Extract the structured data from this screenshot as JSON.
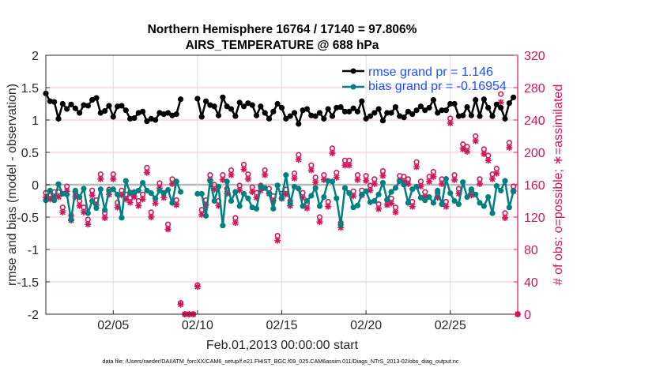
{
  "chart_data": {
    "type": "line",
    "title": "Northern Hemisphere 16764 / 17140 = 97.806%",
    "subtitle": "AIRS_TEMPERATURE @ 688 hPa",
    "xlabel": "Feb.01,2013 00:00:00 start",
    "ylabel": "rmse and bias (model - observation)",
    "ylabel_right": "# of obs: o=possible; ∗=assimilated",
    "footer": "data file: /Users/raeder/DAI/ATM_forcXX/CAM6_setup/f.e21.FHIST_BGC.f09_025.CAM6assim.011/Diags_NTrS_2013-02/obs_diag_output.nc",
    "x_start": "2013-02-01 00:00",
    "x_step_days": 0.25,
    "xlim_days": [
      0,
      28
    ],
    "x_ticks": [
      {
        "day": 4,
        "label": "02/05"
      },
      {
        "day": 9,
        "label": "02/10"
      },
      {
        "day": 14,
        "label": "02/15"
      },
      {
        "day": 19,
        "label": "02/20"
      },
      {
        "day": 24,
        "label": "02/25"
      }
    ],
    "ylim": [
      -2,
      2
    ],
    "y_ticks": [
      "2",
      "1.5",
      "1",
      "0.5",
      "0",
      "-0.5",
      "-1",
      "-1.5",
      "-2"
    ],
    "ylim_right": [
      0,
      320
    ],
    "y_ticks_right": [
      "320",
      "280",
      "240",
      "200",
      "160",
      "120",
      "80",
      "40",
      "0"
    ],
    "grid": true,
    "legend_position": "top-right",
    "legend": [
      "rmse grand pr = 1.146",
      "bias grand pr = -0.16954"
    ],
    "colors": {
      "rmse": "#000000",
      "bias": "#008080",
      "obs": "#d4145a",
      "legend_text": "#1f4fff"
    },
    "series": [
      {
        "name": "rmse",
        "values": [
          1.41,
          1.29,
          1.28,
          1.02,
          1.25,
          1.17,
          1.24,
          1.18,
          1.11,
          1.23,
          1.22,
          1.31,
          1.34,
          1.11,
          1.14,
          1.22,
          1.05,
          1.21,
          1.22,
          1.15,
          1.02,
          1.03,
          1.11,
          1.13,
          0.98,
          1.02,
          1.0,
          1.11,
          1.09,
          1.11,
          1.07,
          1.09,
          1.32,
          null,
          null,
          null,
          1.33,
          1.05,
          1.29,
          1.23,
          1.21,
          1.07,
          1.35,
          1.21,
          1.17,
          1.06,
          1.27,
          1.21,
          1.26,
          1.23,
          1.07,
          1.21,
          1.11,
          1.02,
          1.13,
          1.25,
          1.19,
          1.02,
          1.06,
          1.11,
          0.94,
          1.15,
          1.17,
          1.07,
          1.06,
          1.11,
          1.02,
          1.17,
          1.06,
          1.19,
          1.2,
          1.13,
          1.13,
          1.18,
          1.13,
          1.29,
          1.02,
          1.06,
          1.11,
          1.17,
          0.99,
          1.11,
          1.11,
          1.2,
          1.06,
          1.04,
          1.13,
          1.09,
          1.15,
          1.21,
          1.15,
          1.19,
          1.31,
          1.11,
          1.15,
          1.15,
          1.25,
          1.25,
          1.06,
          1.07,
          1.2,
          1.07,
          1.31,
          1.06,
          1.32,
          1.19,
          1.06,
          1.24,
          1.19,
          1.02,
          1.26,
          1.35,
          null
        ]
      },
      {
        "name": "bias",
        "values": [
          -0.24,
          -0.09,
          -0.24,
          0.01,
          -0.14,
          -0.15,
          -0.54,
          -0.09,
          -0.19,
          -0.06,
          -0.44,
          -0.25,
          -0.36,
          -0.07,
          -0.39,
          -0.1,
          -0.07,
          -0.15,
          -0.51,
          0.06,
          -0.12,
          -0.12,
          -0.09,
          0.03,
          -0.09,
          -0.13,
          -0.21,
          -0.09,
          -0.13,
          -0.08,
          -0.28,
          0.05,
          -0.11,
          null,
          null,
          null,
          -0.14,
          -0.14,
          -0.48,
          0.06,
          -0.25,
          -0.03,
          -0.63,
          0.05,
          -0.25,
          -0.11,
          -0.33,
          -0.14,
          -0.21,
          -0.35,
          -0.37,
          -0.03,
          -0.05,
          -0.13,
          -0.37,
          -0.01,
          -0.21,
          0.15,
          -0.29,
          -0.03,
          -0.06,
          -0.33,
          -0.25,
          -0.17,
          -0.05,
          -0.33,
          -0.19,
          0.06,
          0.05,
          -0.21,
          -0.62,
          -0.05,
          -0.13,
          -0.35,
          -0.32,
          -0.15,
          -0.1,
          -0.27,
          -0.25,
          -0.15,
          0.03,
          -0.23,
          -0.11,
          -0.05,
          0.06,
          0.0,
          -0.28,
          -0.07,
          -0.03,
          -0.2,
          -0.24,
          -0.19,
          -0.28,
          -0.09,
          -0.3,
          0.09,
          -0.13,
          -0.25,
          -0.3,
          0.04,
          -0.19,
          -0.07,
          -0.15,
          -0.28,
          -0.33,
          -0.19,
          -0.44,
          -0.02,
          -0.09,
          0.06,
          -0.35,
          -0.1,
          null
        ]
      },
      {
        "name": "obs possible",
        "axis": "right",
        "values": [
          150,
          148,
          151,
          151,
          132,
          158,
          122,
          151,
          140,
          132,
          117,
          153,
          141,
          173,
          125,
          154,
          173,
          138,
          153,
          148,
          144,
          151,
          140,
          148,
          181,
          126,
          143,
          162,
          150,
          111,
          167,
          141,
          14,
          0,
          0,
          0,
          36,
          129,
          141,
          172,
          160,
          140,
          172,
          155,
          178,
          119,
          159,
          185,
          173,
          157,
          150,
          159,
          178,
          155,
          146,
          97,
          149,
          154,
          140,
          174,
          197,
          150,
          137,
          184,
          169,
          120,
          172,
          139,
          205,
          175,
          113,
          190,
          190,
          152,
          172,
          153,
          171,
          159,
          167,
          136,
          177,
          141,
          143,
          132,
          171,
          170,
          167,
          139,
          188,
          164,
          151,
          170,
          176,
          150,
          167,
          139,
          242,
          172,
          155,
          210,
          207,
          153,
          220,
          167,
          204,
          196,
          173,
          180,
          272,
          125,
          212,
          158,
          0
        ]
      },
      {
        "name": "obs assimilated",
        "axis": "right",
        "values": [
          144,
          142,
          145,
          145,
          126,
          152,
          116,
          145,
          134,
          126,
          111,
          147,
          135,
          167,
          119,
          148,
          167,
          132,
          147,
          142,
          138,
          145,
          134,
          142,
          175,
          120,
          137,
          156,
          144,
          105,
          161,
          135,
          12,
          0,
          0,
          0,
          34,
          123,
          135,
          166,
          154,
          134,
          166,
          149,
          172,
          113,
          153,
          179,
          167,
          151,
          144,
          153,
          172,
          149,
          140,
          91,
          143,
          148,
          134,
          168,
          191,
          144,
          131,
          178,
          163,
          114,
          166,
          133,
          199,
          169,
          107,
          184,
          184,
          146,
          166,
          147,
          165,
          153,
          161,
          130,
          171,
          135,
          137,
          126,
          165,
          164,
          161,
          133,
          182,
          158,
          145,
          164,
          170,
          144,
          161,
          133,
          236,
          166,
          149,
          204,
          201,
          147,
          214,
          161,
          198,
          190,
          167,
          174,
          262,
          119,
          206,
          152,
          0
        ]
      }
    ]
  }
}
